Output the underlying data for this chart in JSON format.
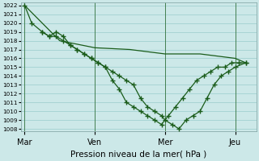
{
  "title": "Pression niveau de la mer( hPa )",
  "background_color": "#cce8e8",
  "grid_color": "#99cccc",
  "line_color": "#1a5c1a",
  "ylim": [
    1008,
    1022
  ],
  "yticks": [
    1008,
    1009,
    1010,
    1011,
    1012,
    1013,
    1014,
    1015,
    1016,
    1017,
    1018,
    1019,
    1020,
    1021,
    1022
  ],
  "xtick_labels": [
    "Mar",
    "Ven",
    "Mer",
    "Jeu"
  ],
  "xtick_positions": [
    0.0,
    1.0,
    2.0,
    3.0
  ],
  "xlim": [
    -0.05,
    3.3
  ],
  "line1_x": [
    0.0,
    0.1,
    0.25,
    0.35,
    0.45,
    0.55,
    0.65,
    0.75,
    0.85,
    0.95,
    1.05,
    1.15,
    1.25,
    1.35,
    1.45,
    1.55,
    1.65,
    1.75,
    1.85,
    1.95,
    2.0,
    2.1,
    2.2,
    2.3,
    2.4,
    2.5,
    2.6,
    2.7,
    2.8,
    2.9,
    3.0,
    3.15
  ],
  "line1_y": [
    1022,
    1020.0,
    1019.0,
    1018.5,
    1018.5,
    1018.0,
    1017.5,
    1017.0,
    1016.5,
    1016.0,
    1015.5,
    1015.0,
    1014.5,
    1014.0,
    1013.5,
    1013.0,
    1011.5,
    1010.5,
    1010.0,
    1009.5,
    1009.0,
    1008.5,
    1008.0,
    1009.0,
    1009.5,
    1010.0,
    1011.5,
    1013.0,
    1014.0,
    1014.5,
    1015.0,
    1015.5
  ],
  "line2_x": [
    0.25,
    0.35,
    0.45,
    0.55,
    0.65,
    0.75,
    0.85,
    0.95,
    1.05,
    1.15,
    1.25,
    1.35,
    1.45,
    1.55,
    1.65,
    1.75,
    1.85,
    1.95,
    2.05,
    2.15,
    2.25,
    2.35,
    2.45,
    2.55,
    2.65,
    2.75,
    2.85,
    2.95,
    3.05,
    3.15
  ],
  "line2_y": [
    1019.0,
    1018.5,
    1019.0,
    1018.5,
    1017.5,
    1017.0,
    1016.5,
    1016.0,
    1015.5,
    1015.0,
    1013.5,
    1012.5,
    1011.0,
    1010.5,
    1010.0,
    1009.5,
    1009.0,
    1008.5,
    1009.5,
    1010.5,
    1011.5,
    1012.5,
    1013.5,
    1014.0,
    1014.5,
    1015.0,
    1015.0,
    1015.5,
    1015.5,
    1015.5
  ],
  "line3_x": [
    0.0,
    0.5,
    1.0,
    1.5,
    2.0,
    2.5,
    3.0,
    3.15
  ],
  "line3_y": [
    1022,
    1018.0,
    1017.2,
    1017.0,
    1016.5,
    1016.5,
    1016.0,
    1015.5
  ]
}
